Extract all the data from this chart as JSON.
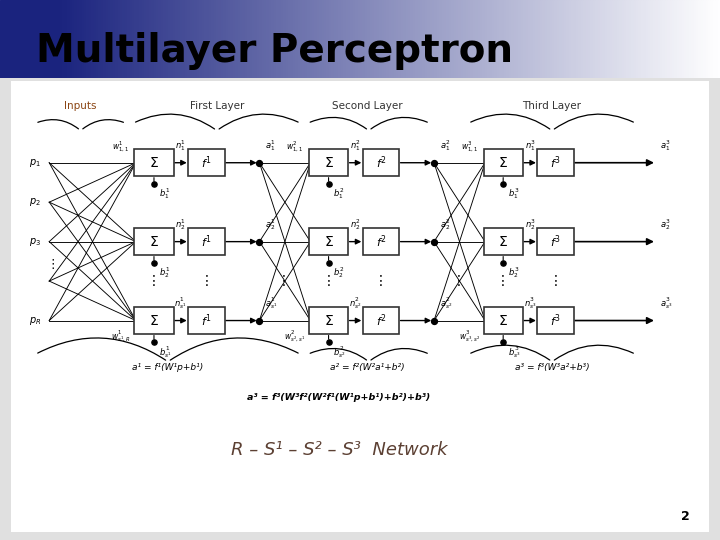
{
  "title": "Multilayer Perceptron",
  "title_fontsize": 28,
  "page_number": "2",
  "layer_labels": [
    "Inputs",
    "First Layer",
    "Second Layer",
    "Third Layer"
  ],
  "layer_label_color_0": "#8B4513",
  "layer_label_color_rest": "#333333",
  "equations": [
    "a¹ = f¹(W¹p+b¹)",
    "a² = f²(W²a¹+b²)",
    "a³ = f³(W³a²+b³)"
  ],
  "main_equation": "a³ = f³(W³f²(W²f¹(W¹p+b¹)+b²)+b³)",
  "network_label": "R – S¹ – S² – S³  Network",
  "header_color": "#1a237e",
  "bg_color": "#e0e0e0"
}
